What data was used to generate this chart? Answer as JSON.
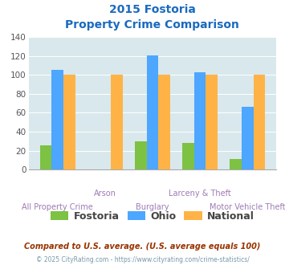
{
  "title_line1": "2015 Fostoria",
  "title_line2": "Property Crime Comparison",
  "series": {
    "Fostoria": [
      26,
      0,
      30,
      28,
      11
    ],
    "Ohio": [
      105,
      0,
      121,
      103,
      66
    ],
    "National": [
      100,
      100,
      100,
      100,
      100
    ]
  },
  "colors": {
    "Fostoria": "#7dc242",
    "Ohio": "#4da6ff",
    "National": "#ffb347"
  },
  "ylim": [
    0,
    140
  ],
  "yticks": [
    0,
    20,
    40,
    60,
    80,
    100,
    120,
    140
  ],
  "title_color": "#1a6abf",
  "xlabel_color": "#9e7bb5",
  "legend_fontsize": 9,
  "footnote1": "Compared to U.S. average. (U.S. average equals 100)",
  "footnote2": "© 2025 CityRating.com - https://www.cityrating.com/crime-statistics/",
  "footnote1_color": "#993300",
  "footnote2_color": "#7799aa",
  "background_color": "#d9e8ec",
  "bar_width": 0.25,
  "line1_labels": [
    "",
    "Arson",
    "",
    "Larceny & Theft",
    ""
  ],
  "line2_labels": [
    "All Property Crime",
    "",
    "Burglary",
    "",
    "Motor Vehicle Theft"
  ]
}
